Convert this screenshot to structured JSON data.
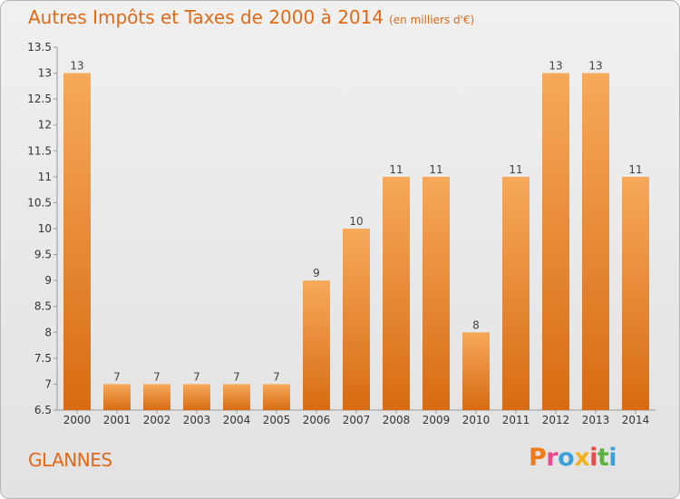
{
  "title": "Autres Impôts et Taxes de 2000 à 2014",
  "unit": "(en milliers d'€)",
  "place": "GLANNES",
  "logo": {
    "text": "Proxiti",
    "colors": [
      "#f07a1a",
      "#e84a8a",
      "#3aa0d8",
      "#f0b020",
      "#e84a4a",
      "#5ab040",
      "#3aa0d8"
    ]
  },
  "colors": {
    "bar_top": "#f7a95a",
    "bar_bottom": "#d76b12",
    "title": "#e06a17"
  },
  "chart_data": {
    "type": "bar",
    "categories": [
      "2000",
      "2001",
      "2002",
      "2003",
      "2004",
      "2005",
      "2006",
      "2007",
      "2008",
      "2009",
      "2010",
      "2011",
      "2012",
      "2013",
      "2014"
    ],
    "values": [
      13,
      7,
      7,
      7,
      7,
      7,
      9,
      10,
      11,
      11,
      8,
      11,
      13,
      13,
      11
    ],
    "data_labels": [
      "13",
      "7",
      "7",
      "7",
      "7",
      "7",
      "9",
      "10",
      "11",
      "11",
      "8",
      "11",
      "13",
      "13",
      "11"
    ],
    "yticks": [
      "6.5",
      "7",
      "7.5",
      "8",
      "8.5",
      "9",
      "9.5",
      "10",
      "10.5",
      "11",
      "11.5",
      "12",
      "12.5",
      "13",
      "13.5"
    ],
    "ylim": [
      6.5,
      13.5
    ],
    "grid": false
  }
}
